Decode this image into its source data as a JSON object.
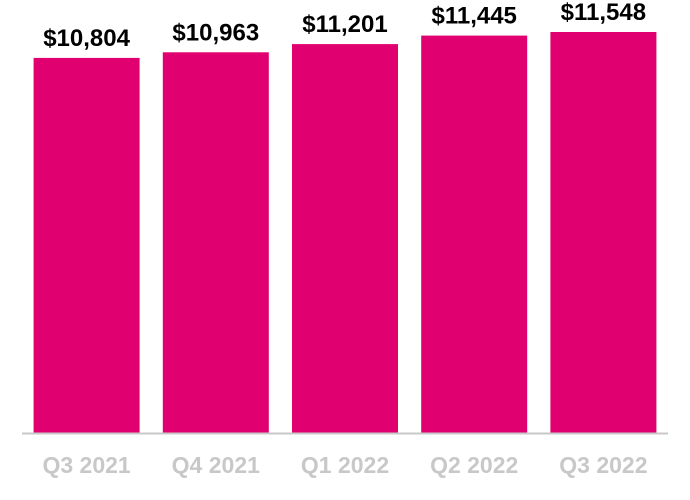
{
  "chart_data": {
    "type": "bar",
    "categories": [
      "Q3 2021",
      "Q4 2021",
      "Q1 2022",
      "Q2 2022",
      "Q3 2022"
    ],
    "values": [
      10804,
      10963,
      11201,
      11445,
      11548
    ],
    "data_labels": [
      "$10,804",
      "$10,963",
      "$11,201",
      "$11,445",
      "$11,548"
    ],
    "title": "",
    "xlabel": "",
    "ylabel": "",
    "ylim": [
      0,
      12240
    ],
    "grid": false,
    "legend": "none",
    "colors": {
      "bar": "#e0006f",
      "axis": "#c8c8c8",
      "tick_label": "#c8c8c8",
      "data_label": "#000000"
    }
  }
}
